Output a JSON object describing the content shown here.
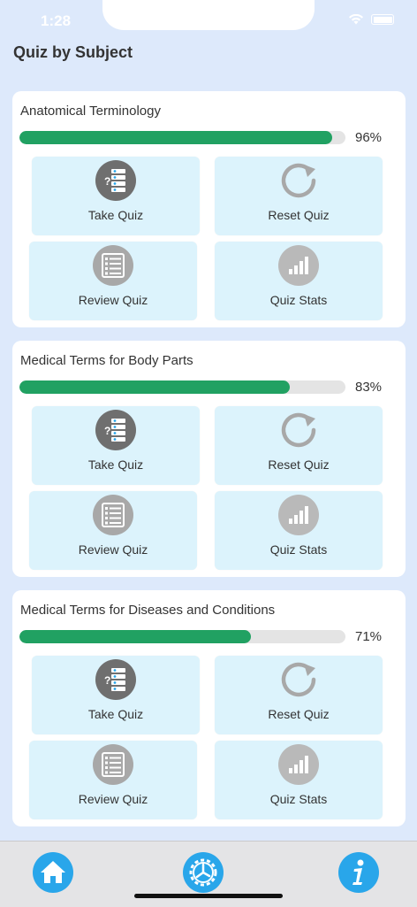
{
  "status_bar": {
    "time": "1:28"
  },
  "header": {
    "title": "Quiz by Subject"
  },
  "subjects": [
    {
      "title": "Anatomical Terminology",
      "progress_percent": 96,
      "progress_label": "96%",
      "actions": {
        "take_quiz": "Take Quiz",
        "reset_quiz": "Reset Quiz",
        "review_quiz": "Review Quiz",
        "quiz_stats": "Quiz Stats"
      }
    },
    {
      "title": "Medical Terms for Body Parts",
      "progress_percent": 83,
      "progress_label": "83%",
      "actions": {
        "take_quiz": "Take Quiz",
        "reset_quiz": "Reset Quiz",
        "review_quiz": "Review Quiz",
        "quiz_stats": "Quiz Stats"
      }
    },
    {
      "title": "Medical Terms for Diseases and Conditions",
      "progress_percent": 71,
      "progress_label": "71%",
      "actions": {
        "take_quiz": "Take Quiz",
        "reset_quiz": "Reset Quiz",
        "review_quiz": "Review Quiz",
        "quiz_stats": "Quiz Stats"
      }
    }
  ],
  "tab_bar": {
    "items": [
      "home-icon",
      "settings-gear-icon",
      "info-icon"
    ]
  },
  "colors": {
    "background": "#dde9fb",
    "progress_fill": "#21a162",
    "action_tile": "#dcf3fc",
    "tab_button": "#29a6ea"
  }
}
